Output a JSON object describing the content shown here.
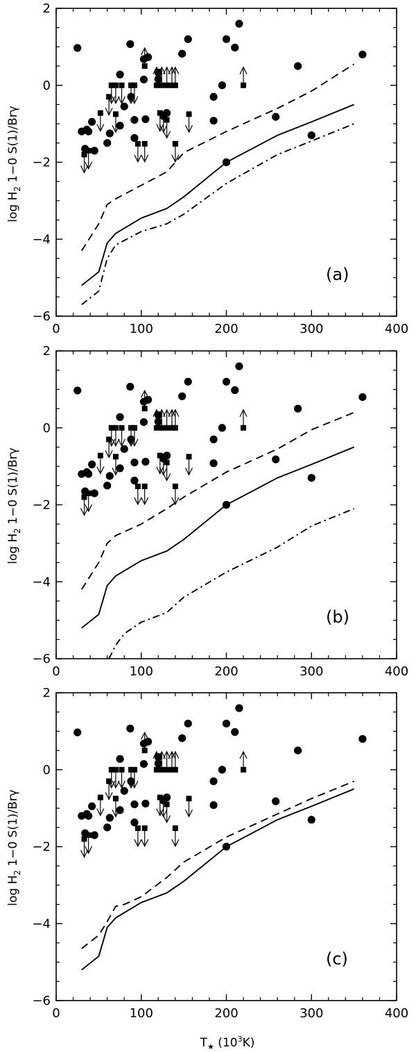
{
  "figure": {
    "ylabel_main": "log H",
    "ylabel_sub": "2",
    "ylabel_rest": " 1−0 S(1)/Brγ",
    "xlabel_main": "T",
    "xlabel_star": "★",
    "xlabel_unit_a": " (10",
    "xlabel_unit_sup": "3",
    "xlabel_unit_b": "K)"
  },
  "chart_data": [
    {
      "type": "scatter",
      "panel": "(a)",
      "xlabel": "T★ (10³K)",
      "ylabel": "log H₂ 1−0 S(1)/Brγ",
      "xlim": [
        0,
        400
      ],
      "ylim": [
        -6,
        2
      ],
      "xticks": [
        0,
        100,
        200,
        300,
        400
      ],
      "yticks": [
        -6,
        -4,
        -2,
        0,
        2
      ],
      "xtick_labels": [
        "0",
        "100",
        "200",
        "300",
        "400"
      ],
      "ytick_labels": [
        "−6",
        "−4",
        "−2",
        "0",
        "2"
      ],
      "series": [
        {
          "name": "solid model",
          "style": "solid",
          "x": [
            30,
            50,
            60,
            70,
            100,
            130,
            150,
            200,
            260,
            300,
            350
          ],
          "y": [
            -5.2,
            -4.85,
            -4.1,
            -3.85,
            -3.45,
            -3.2,
            -2.9,
            -2.0,
            -1.3,
            -0.95,
            -0.5
          ]
        },
        {
          "name": "dashed model",
          "style": "dashed",
          "x": [
            30,
            50,
            60,
            70,
            100,
            130,
            150,
            200,
            260,
            300,
            350
          ],
          "y": [
            -4.3,
            -3.6,
            -3.1,
            -2.95,
            -2.6,
            -2.25,
            -1.75,
            -1.2,
            -0.6,
            -0.15,
            0.55
          ]
        },
        {
          "name": "dash-dot model",
          "style": "dashdot",
          "x": [
            30,
            50,
            60,
            70,
            100,
            130,
            150,
            200,
            260,
            300,
            350
          ],
          "y": [
            -5.7,
            -5.35,
            -4.5,
            -4.15,
            -3.8,
            -3.6,
            -3.35,
            -2.55,
            -1.8,
            -1.45,
            -1.0
          ]
        }
      ]
    },
    {
      "type": "scatter",
      "panel": "(b)",
      "xlabel": "T★ (10³K)",
      "ylabel": "log H₂ 1−0 S(1)/Brγ",
      "xlim": [
        0,
        400
      ],
      "ylim": [
        -6,
        2
      ],
      "xticks": [
        0,
        100,
        200,
        300,
        400
      ],
      "yticks": [
        -6,
        -4,
        -2,
        0,
        2
      ],
      "xtick_labels": [
        "0",
        "100",
        "200",
        "300",
        "400"
      ],
      "ytick_labels": [
        "−6",
        "−4",
        "−2",
        "0",
        "2"
      ],
      "series": [
        {
          "name": "solid model",
          "style": "solid",
          "x": [
            30,
            50,
            60,
            70,
            100,
            130,
            150,
            200,
            260,
            300,
            350
          ],
          "y": [
            -5.2,
            -4.85,
            -4.1,
            -3.85,
            -3.45,
            -3.2,
            -2.9,
            -2.0,
            -1.3,
            -0.95,
            -0.5
          ]
        },
        {
          "name": "dashed model",
          "style": "dashed",
          "x": [
            30,
            50,
            60,
            70,
            100,
            130,
            150,
            200,
            260,
            300,
            350
          ],
          "y": [
            -4.2,
            -3.5,
            -3.0,
            -2.8,
            -2.5,
            -2.1,
            -1.8,
            -1.15,
            -0.55,
            -0.05,
            0.4
          ]
        },
        {
          "name": "dash-dot model",
          "style": "dashdot",
          "x": [
            62,
            70,
            80,
            100,
            130,
            150,
            200,
            260,
            300,
            350
          ],
          "y": [
            -6.0,
            -5.65,
            -5.35,
            -5.05,
            -4.8,
            -4.4,
            -3.75,
            -3.1,
            -2.55,
            -2.1
          ]
        }
      ]
    },
    {
      "type": "scatter",
      "panel": "(c)",
      "xlabel": "T★ (10³K)",
      "ylabel": "log H₂ 1−0 S(1)/Brγ",
      "xlim": [
        0,
        400
      ],
      "ylim": [
        -6,
        2
      ],
      "xticks": [
        0,
        100,
        200,
        300,
        400
      ],
      "yticks": [
        -6,
        -4,
        -2,
        0,
        2
      ],
      "xtick_labels": [
        "0",
        "100",
        "200",
        "300",
        "400"
      ],
      "ytick_labels": [
        "−6",
        "−4",
        "−2",
        "0",
        "2"
      ],
      "series": [
        {
          "name": "solid model",
          "style": "solid",
          "x": [
            30,
            50,
            60,
            70,
            100,
            130,
            150,
            200,
            260,
            300,
            350
          ],
          "y": [
            -5.2,
            -4.85,
            -4.1,
            -3.85,
            -3.45,
            -3.2,
            -2.9,
            -2.0,
            -1.3,
            -0.95,
            -0.5
          ]
        },
        {
          "name": "dashed model",
          "style": "dashed",
          "x": [
            30,
            50,
            60,
            70,
            80,
            100,
            130,
            150,
            200,
            260,
            300,
            350
          ],
          "y": [
            -4.65,
            -4.3,
            -3.95,
            -3.55,
            -3.5,
            -3.3,
            -2.8,
            -2.4,
            -1.75,
            -1.15,
            -0.75,
            -0.3
          ]
        }
      ]
    }
  ],
  "observations": {
    "circles": [
      {
        "x": 25,
        "y": 0.97
      },
      {
        "x": 87,
        "y": 1.07
      },
      {
        "x": 103,
        "y": 0.68
      },
      {
        "x": 108,
        "y": 0.73
      },
      {
        "x": 120,
        "y": 0.33
      },
      {
        "x": 148,
        "y": 0.82
      },
      {
        "x": 155,
        "y": 1.2
      },
      {
        "x": 200,
        "y": 1.2
      },
      {
        "x": 210,
        "y": 0.98
      },
      {
        "x": 215,
        "y": 1.6
      },
      {
        "x": 284,
        "y": 0.5
      },
      {
        "x": 360,
        "y": 0.8
      },
      {
        "x": 75,
        "y": 0.28
      },
      {
        "x": 80,
        "y": -0.55
      },
      {
        "x": 88,
        "y": -0.3
      },
      {
        "x": 92,
        "y": -0.9
      },
      {
        "x": 103,
        "y": 0.15
      },
      {
        "x": 105,
        "y": -0.88
      },
      {
        "x": 120,
        "y": 0.16
      },
      {
        "x": 126,
        "y": -0.8
      },
      {
        "x": 130,
        "y": -0.72
      },
      {
        "x": 185,
        "y": -0.3
      },
      {
        "x": 185,
        "y": -0.92
      },
      {
        "x": 195,
        "y": 0.0
      },
      {
        "x": 258,
        "y": -0.82
      },
      {
        "x": 300,
        "y": -1.3
      },
      {
        "x": 200,
        "y": -2.0
      },
      {
        "x": 30,
        "y": -1.2
      },
      {
        "x": 36,
        "y": -1.15
      },
      {
        "x": 38,
        "y": -1.2
      },
      {
        "x": 42,
        "y": -0.95
      },
      {
        "x": 45,
        "y": -1.7
      },
      {
        "x": 60,
        "y": -1.5
      },
      {
        "x": 63,
        "y": -1.25
      },
      {
        "x": 75,
        "y": -1.05
      },
      {
        "x": 92,
        "y": -1.37
      },
      {
        "x": 34,
        "y": -1.65
      }
    ],
    "upper_limits": [
      {
        "x": 33,
        "y": -1.8
      },
      {
        "x": 38,
        "y": -1.7
      },
      {
        "x": 52,
        "y": -0.72
      },
      {
        "x": 65,
        "y": 0.0
      },
      {
        "x": 70,
        "y": 0.0
      },
      {
        "x": 77,
        "y": 0.0
      },
      {
        "x": 62,
        "y": -0.3
      },
      {
        "x": 70,
        "y": -0.75
      },
      {
        "x": 96,
        "y": -1.52
      },
      {
        "x": 104,
        "y": -1.52
      },
      {
        "x": 92,
        "y": 0.0
      },
      {
        "x": 88,
        "y": 0.0
      },
      {
        "x": 122,
        "y": -0.72
      },
      {
        "x": 126,
        "y": -0.75
      },
      {
        "x": 130,
        "y": -0.9
      },
      {
        "x": 140,
        "y": -1.52
      },
      {
        "x": 156,
        "y": -0.75
      }
    ],
    "lower_limits": [
      {
        "x": 104,
        "y": 0.5
      },
      {
        "x": 118,
        "y": 0.0
      },
      {
        "x": 124,
        "y": 0.0
      },
      {
        "x": 130,
        "y": 0.0
      },
      {
        "x": 136,
        "y": 0.0
      },
      {
        "x": 140,
        "y": 0.0
      },
      {
        "x": 220,
        "y": 0.0
      }
    ]
  }
}
